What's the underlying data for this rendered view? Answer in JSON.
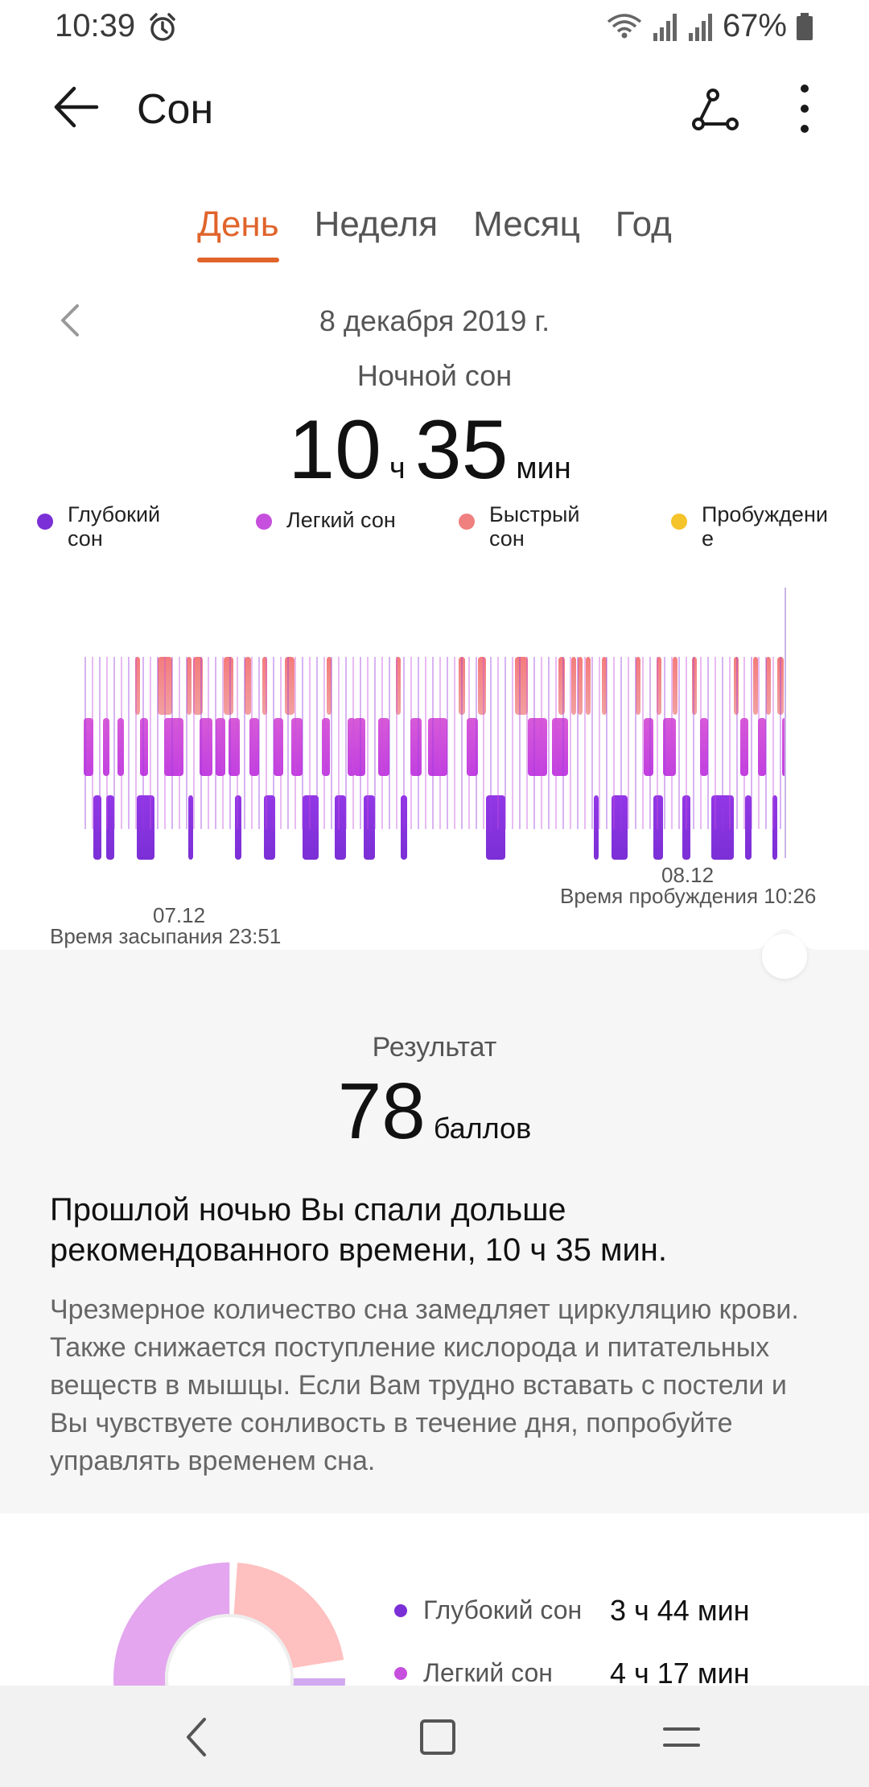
{
  "status_bar": {
    "time": "10:39",
    "battery": "67%"
  },
  "app_bar": {
    "title": "Сон"
  },
  "tabs": [
    {
      "label": "День",
      "active": true
    },
    {
      "label": "Неделя",
      "active": false
    },
    {
      "label": "Месяц",
      "active": false
    },
    {
      "label": "Год",
      "active": false
    }
  ],
  "date": "8 декабря 2019 г.",
  "night_sleep_label": "Ночной сон",
  "duration": {
    "hours": "10",
    "hours_unit": "ч",
    "minutes": "35",
    "minutes_unit": "мин"
  },
  "legend": [
    {
      "label": "Глубокий сон",
      "color": "#7b2fd6"
    },
    {
      "label": "Легкий сон",
      "color": "#c64fdd"
    },
    {
      "label": "Быстрый сон",
      "color": "#f07f7f"
    },
    {
      "label": "Пробуждение",
      "color": "#f5c32a"
    }
  ],
  "chart": {
    "start_date": "07.12",
    "sleep_time_label": "Время засыпания 23:51",
    "end_date": "08.12",
    "wake_time_label": "Время пробуждения 10:26"
  },
  "result": {
    "label": "Результат",
    "score": "78",
    "score_unit": "баллов",
    "headline": "Прошлой ночью Вы спали дольше рекомендованного времени, 10 ч 35 мин.",
    "advice": "Чрезмерное количество сна замедляет циркуляцию крови. Также снижается поступление кислорода и питательных веществ в мышцы. Если Вам трудно вставать с постели и Вы чувствуете сонливость в течение дня, попробуйте управлять временем сна."
  },
  "breakdown": [
    {
      "label": "Глубокий сон",
      "value": "3 ч 44 мин",
      "color": "#7b2fd6"
    },
    {
      "label": "Легкий сон",
      "value": "4 ч 17 мин",
      "color": "#c64fdd"
    }
  ]
}
